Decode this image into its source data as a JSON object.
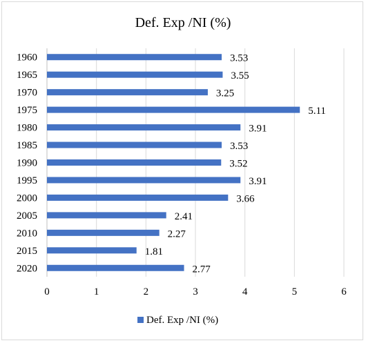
{
  "chart_data": {
    "type": "bar",
    "orientation": "horizontal",
    "title": "Def. Exp /NI (%)",
    "categories": [
      "1960",
      "1965",
      "1970",
      "1975",
      "1980",
      "1985",
      "1990",
      "1995",
      "2000",
      "2005",
      "2010",
      "2015",
      "2020"
    ],
    "series": [
      {
        "name": "Def. Exp /NI (%)",
        "values": [
          3.53,
          3.55,
          3.25,
          5.11,
          3.91,
          3.53,
          3.52,
          3.91,
          3.66,
          2.41,
          2.27,
          1.81,
          2.77
        ],
        "data_labels": [
          "3.53",
          "3.55",
          "3.25",
          "5.11",
          "3.91",
          "3.53",
          "3.52",
          "3.91",
          "3.66",
          "2.41",
          "2.27",
          "1.81",
          "2.77"
        ]
      }
    ],
    "xlim": [
      0,
      6
    ],
    "xticks": [
      "0",
      "1",
      "2",
      "3",
      "4",
      "5",
      "6"
    ],
    "grid": "vertical",
    "legend_position": "bottom",
    "colors": {
      "bar": "#4472C4",
      "grid": "#d9d9d9",
      "axis": "#bfbfbf"
    }
  }
}
